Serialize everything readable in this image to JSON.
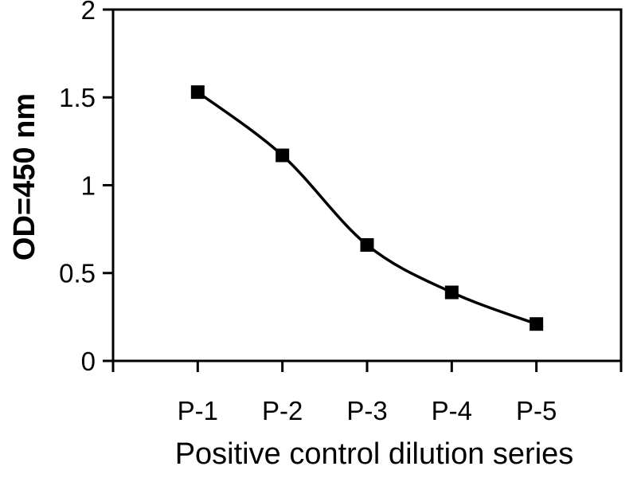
{
  "figure": {
    "background": "#ffffff"
  },
  "chart_data": {
    "type": "line",
    "title": "",
    "categories": [
      "P-1",
      "P-2",
      "P-3",
      "P-4",
      "P-5"
    ],
    "values": [
      1.53,
      1.17,
      0.66,
      0.39,
      0.21
    ],
    "xlabel": "Positive control dilution series",
    "ylabel": "OD=450 nm",
    "ylim": [
      0,
      2
    ],
    "yticks": [
      0,
      0.5,
      1,
      1.5,
      2
    ],
    "ytick_labels": [
      "0",
      "0.5",
      "1",
      "1.5",
      "2"
    ],
    "grid": "off",
    "legend": "none",
    "marker": "square",
    "line_style": "smooth",
    "colors": {
      "line": "#000000",
      "marker": "#000000",
      "axis": "#000000",
      "text": "#000000",
      "background": "#ffffff"
    }
  }
}
